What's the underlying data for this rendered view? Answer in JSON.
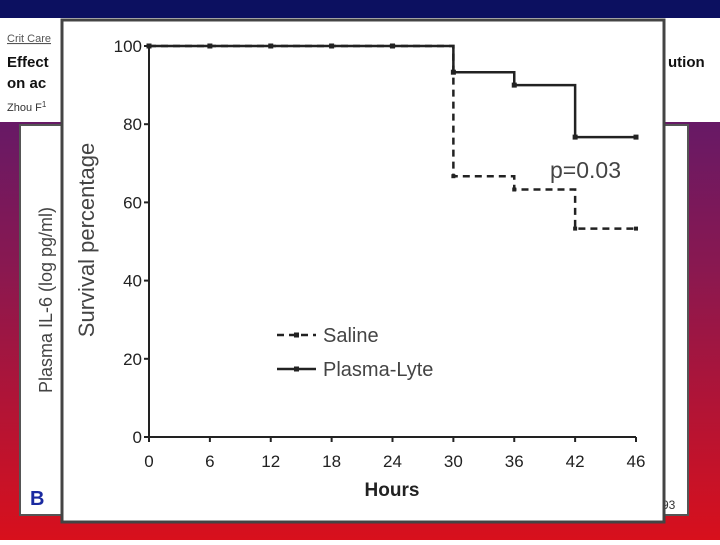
{
  "slide": {
    "journal": "Crit Care",
    "title_line1": "Effect",
    "title_line2": "on ac",
    "title_tail": "ution",
    "authors": "Zhou F",
    "author_sup": "1",
    "panel_label": "B",
    "panel_ylabel": "Plasma IL-6 (log pg/ml)",
    "page_number": "93"
  },
  "chart_data": {
    "type": "step",
    "xlabel": "Hours",
    "ylabel": "Survival percentage",
    "annotation": "p=0.03",
    "categories": [
      0,
      6,
      12,
      18,
      24,
      30,
      36,
      42,
      46
    ],
    "series": [
      {
        "name": "Saline",
        "color": "#222222",
        "dashed": true,
        "values": [
          100,
          100,
          100,
          100,
          100,
          66.7,
          63.3,
          53.3,
          53.3
        ]
      },
      {
        "name": "Plasma-Lyte",
        "color": "#222222",
        "dashed": false,
        "values": [
          100,
          100,
          100,
          100,
          100,
          93.3,
          90,
          76.7,
          76.7
        ]
      }
    ],
    "ylim": [
      0,
      100
    ],
    "yticks": [
      0,
      20,
      40,
      60,
      80,
      100
    ]
  }
}
